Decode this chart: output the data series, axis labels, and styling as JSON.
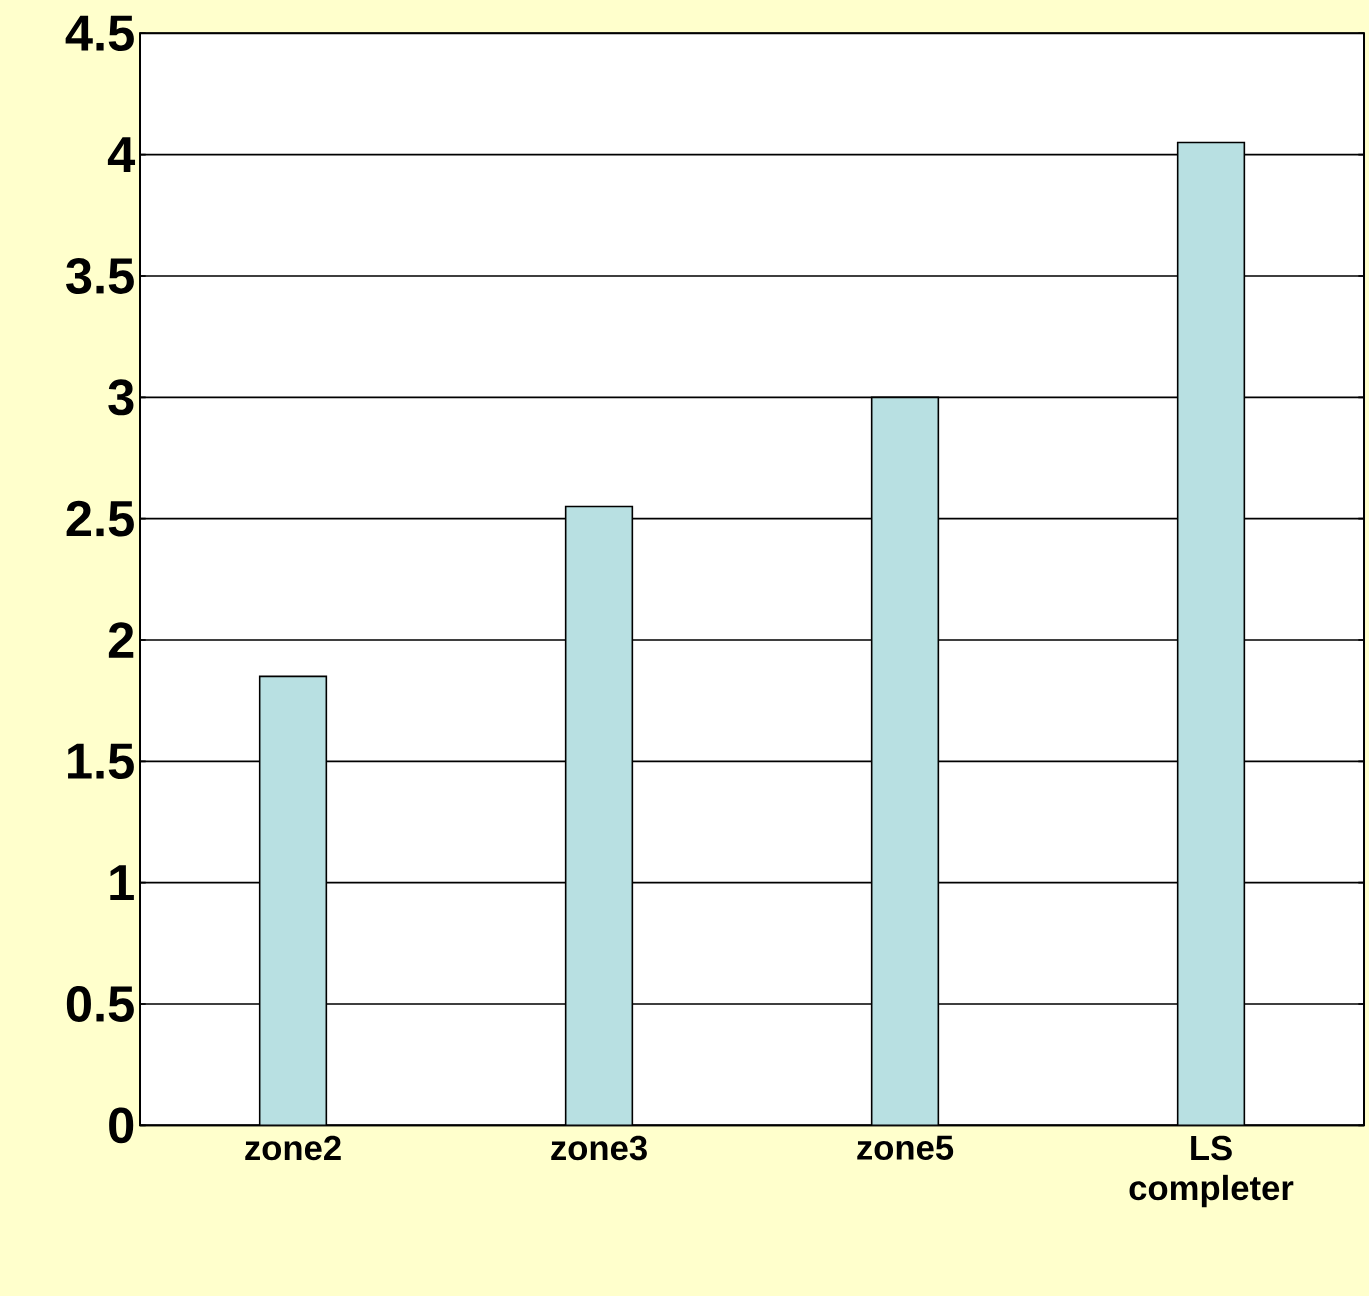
{
  "chart_data": {
    "type": "bar",
    "categories": [
      "zone2",
      "zone3",
      "zone5",
      "LS completer"
    ],
    "values": [
      1.85,
      2.55,
      3.0,
      4.05
    ],
    "color": "#b8e0e2",
    "ylim": [
      0,
      4.5
    ],
    "yticks": [
      0,
      0.5,
      1,
      1.5,
      2,
      2.5,
      3,
      3.5,
      4,
      4.5
    ],
    "grid": "y"
  }
}
